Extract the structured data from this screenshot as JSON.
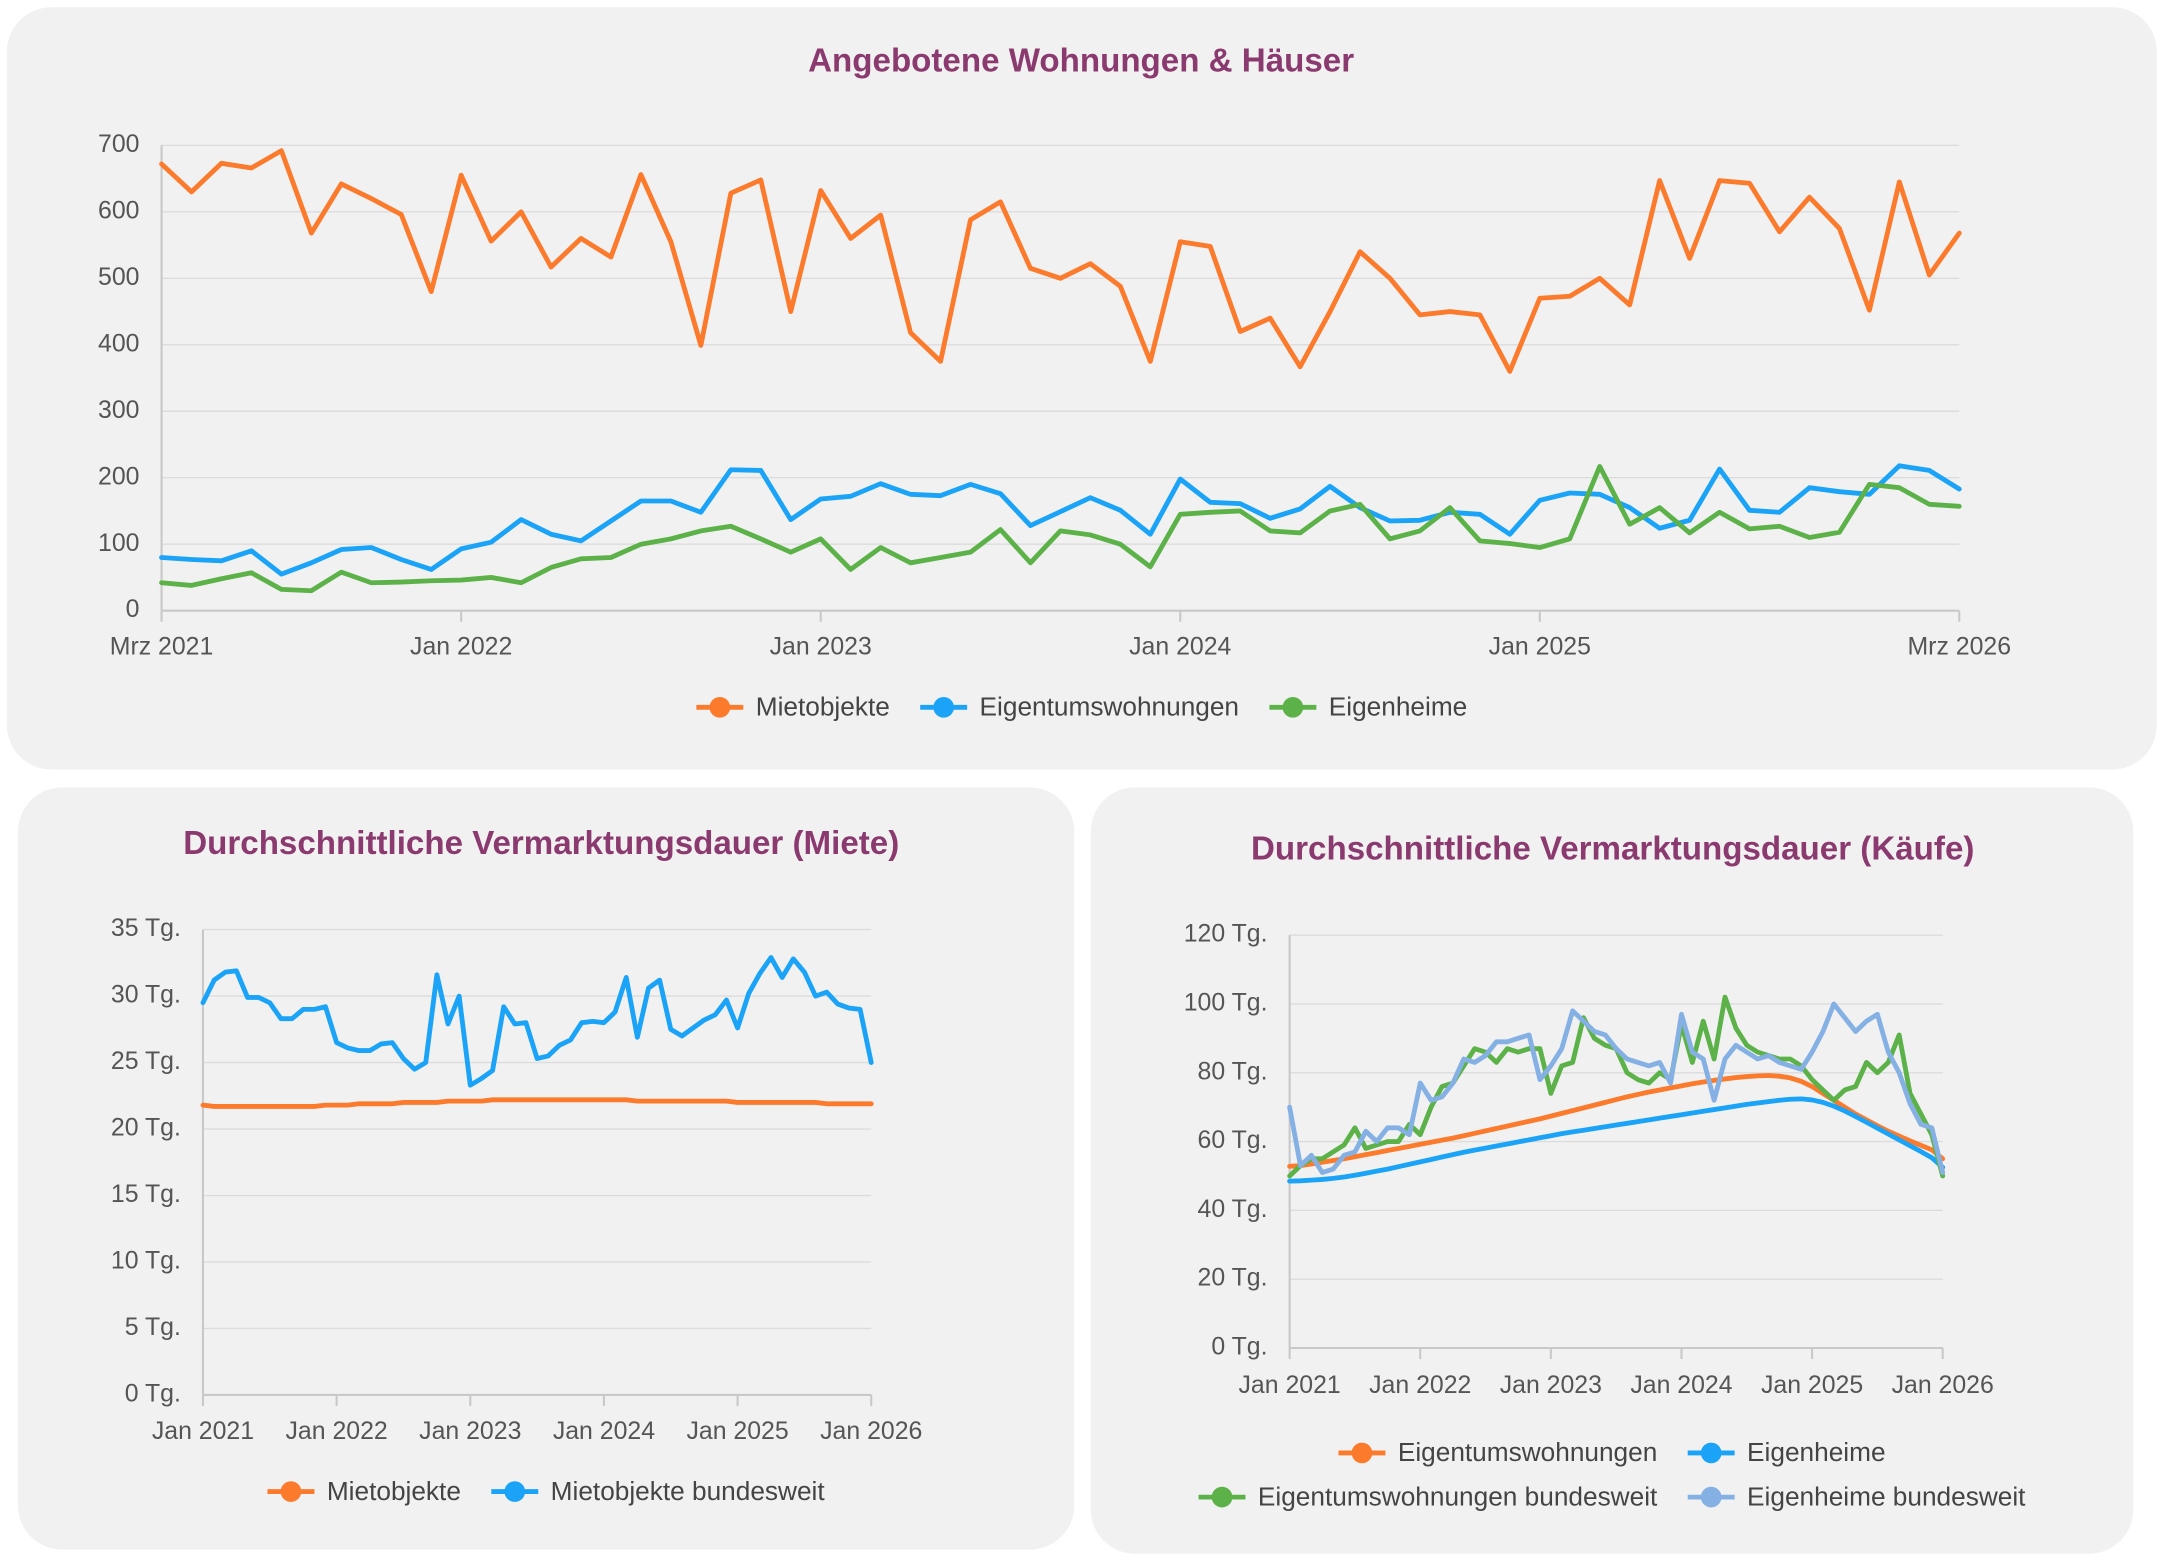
{
  "chart_data": [
    {
      "type": "line",
      "title": "Angebotene Wohnungen & Häuser",
      "categories": [
        "Mrz 2021",
        null,
        null,
        null,
        null,
        null,
        null,
        null,
        null,
        null,
        "Jan 2022",
        null,
        null,
        null,
        null,
        null,
        null,
        null,
        null,
        null,
        null,
        null,
        "Jan 2023",
        null,
        null,
        null,
        null,
        null,
        null,
        null,
        null,
        null,
        null,
        null,
        "Jan 2024",
        null,
        null,
        null,
        null,
        null,
        null,
        null,
        null,
        null,
        null,
        null,
        "Jan 2025",
        null,
        null,
        null,
        null,
        null,
        null,
        null,
        null,
        null,
        null,
        null,
        null,
        null,
        "Mrz 2026"
      ],
      "series": [
        {
          "name": "Mietobjekte",
          "color": "#fb7a2c",
          "values": [
            672,
            630,
            673,
            666,
            692,
            568,
            642,
            620,
            596,
            480,
            655,
            556,
            600,
            517,
            560,
            532,
            656,
            555,
            399,
            628,
            648,
            450,
            632,
            560,
            595,
            418,
            375,
            588,
            615,
            515,
            500,
            522,
            488,
            375,
            555,
            548,
            420,
            440,
            367,
            450,
            540,
            500,
            445,
            450,
            445,
            360,
            470,
            473,
            500,
            460,
            647,
            530,
            647,
            643,
            570,
            622,
            575,
            452,
            645,
            505,
            568
          ]
        },
        {
          "name": "Eigentumswohnungen",
          "color": "#1aa3f7",
          "values": [
            80,
            77,
            75,
            90,
            55,
            72,
            92,
            95,
            77,
            62,
            93,
            103,
            137,
            115,
            105,
            135,
            165,
            165,
            148,
            212,
            211,
            137,
            168,
            172,
            191,
            175,
            173,
            190,
            176,
            128,
            149,
            170,
            151,
            115,
            198,
            163,
            161,
            139,
            153,
            187,
            155,
            135,
            136,
            148,
            145,
            115,
            166,
            177,
            175,
            155,
            124,
            136,
            213,
            151,
            148,
            185,
            179,
            175,
            218,
            211,
            183
          ]
        },
        {
          "name": "Eigenheime",
          "color": "#5cb249",
          "values": [
            42,
            38,
            48,
            57,
            32,
            30,
            58,
            42,
            43,
            45,
            46,
            50,
            42,
            65,
            78,
            80,
            100,
            108,
            120,
            127,
            108,
            88,
            108,
            62,
            95,
            72,
            80,
            88,
            122,
            72,
            120,
            114,
            100,
            66,
            145,
            148,
            150,
            120,
            117,
            150,
            160,
            108,
            120,
            155,
            105,
            101,
            95,
            108,
            217,
            130,
            155,
            117,
            148,
            123,
            127,
            110,
            118,
            190,
            185,
            160,
            157
          ]
        }
      ],
      "ylim": [
        0,
        700
      ],
      "yticks": [
        0,
        100,
        200,
        300,
        400,
        500,
        600,
        700
      ],
      "grid": true,
      "legend": "bottom"
    },
    {
      "type": "line",
      "title": "Durchschnittliche Vermarktungsdauer (Miete)",
      "categories": [
        "Jan 2021",
        null,
        null,
        null,
        null,
        null,
        null,
        null,
        null,
        null,
        null,
        null,
        "Jan 2022",
        null,
        null,
        null,
        null,
        null,
        null,
        null,
        null,
        null,
        null,
        null,
        "Jan 2023",
        null,
        null,
        null,
        null,
        null,
        null,
        null,
        null,
        null,
        null,
        null,
        "Jan 2024",
        null,
        null,
        null,
        null,
        null,
        null,
        null,
        null,
        null,
        null,
        null,
        "Jan 2025",
        null,
        null,
        null,
        null,
        null,
        null,
        null,
        null,
        null,
        null,
        null,
        "Jan 2026"
      ],
      "series": [
        {
          "name": "Mietobjekte",
          "color": "#fb7a2c",
          "values": [
            21.8,
            21.7,
            21.7,
            21.7,
            21.7,
            21.7,
            21.7,
            21.7,
            21.7,
            21.7,
            21.7,
            21.8,
            21.8,
            21.8,
            21.9,
            21.9,
            21.9,
            21.9,
            22,
            22,
            22,
            22,
            22.1,
            22.1,
            22.1,
            22.1,
            22.2,
            22.2,
            22.2,
            22.2,
            22.2,
            22.2,
            22.2,
            22.2,
            22.2,
            22.2,
            22.2,
            22.2,
            22.2,
            22.1,
            22.1,
            22.1,
            22.1,
            22.1,
            22.1,
            22.1,
            22.1,
            22.1,
            22,
            22,
            22,
            22,
            22,
            22,
            22,
            22,
            21.9,
            21.9,
            21.9,
            21.9,
            21.9
          ]
        },
        {
          "name": "Mietobjekte bundesweit",
          "color": "#1aa3f7",
          "values": [
            29.5,
            31.2,
            31.8,
            31.9,
            29.9,
            29.9,
            29.5,
            28.3,
            28.3,
            29.0,
            29.0,
            29.2,
            26.5,
            26.1,
            25.9,
            25.9,
            26.4,
            26.5,
            25.3,
            24.5,
            25.0,
            31.6,
            27.9,
            30.0,
            23.3,
            23.8,
            24.4,
            29.2,
            27.9,
            28.0,
            25.3,
            25.5,
            26.3,
            26.7,
            28.0,
            28.1,
            28.0,
            28.8,
            31.4,
            26.9,
            30.6,
            31.2,
            27.5,
            27.0,
            27.6,
            28.2,
            28.6,
            29.7,
            27.6,
            30.2,
            31.7,
            32.9,
            31.4,
            32.8,
            31.8,
            30.0,
            30.3,
            29.4,
            29.1,
            29.0,
            25.0
          ]
        }
      ],
      "ylim": [
        0,
        35
      ],
      "yticks": [
        {
          "value": 0,
          "label": "0 Tg."
        },
        {
          "value": 5,
          "label": "5 Tg."
        },
        {
          "value": 10,
          "label": "10 Tg."
        },
        {
          "value": 15,
          "label": "15 Tg."
        },
        {
          "value": 20,
          "label": "20 Tg."
        },
        {
          "value": 25,
          "label": "25 Tg."
        },
        {
          "value": 30,
          "label": "30 Tg."
        },
        {
          "value": 35,
          "label": "35 Tg."
        }
      ],
      "grid": true,
      "legend": "bottom"
    },
    {
      "type": "line",
      "title": "Durchschnittliche Vermarktungsdauer (Käufe)",
      "categories": [
        "Jan 2021",
        null,
        null,
        null,
        null,
        null,
        null,
        null,
        null,
        null,
        null,
        null,
        "Jan 2022",
        null,
        null,
        null,
        null,
        null,
        null,
        null,
        null,
        null,
        null,
        null,
        "Jan 2023",
        null,
        null,
        null,
        null,
        null,
        null,
        null,
        null,
        null,
        null,
        null,
        "Jan 2024",
        null,
        null,
        null,
        null,
        null,
        null,
        null,
        null,
        null,
        null,
        null,
        "Jan 2025",
        null,
        null,
        null,
        null,
        null,
        null,
        null,
        null,
        null,
        null,
        null,
        "Jan 2026"
      ],
      "series": [
        {
          "name": "Eigentumswohnungen",
          "color": "#fb7a2c",
          "values": [
            52.8,
            53,
            53.5,
            54,
            54.5,
            55,
            55.6,
            56.2,
            56.8,
            57.4,
            58,
            58.6,
            59.2,
            59.8,
            60.4,
            61,
            61.7,
            62.4,
            63.1,
            63.8,
            64.5,
            65.2,
            65.9,
            66.6,
            67.4,
            68.2,
            69,
            69.8,
            70.6,
            71.4,
            72.2,
            73,
            73.7,
            74.4,
            75,
            75.6,
            76.2,
            76.8,
            77.3,
            77.8,
            78.2,
            78.6,
            78.9,
            79.1,
            79.2,
            79,
            78.5,
            77.5,
            76,
            74,
            72,
            70,
            68,
            66.3,
            64.6,
            63,
            61.6,
            60.2,
            58.9,
            57.6,
            55
          ]
        },
        {
          "name": "Eigenheime",
          "color": "#1aa3f7",
          "values": [
            48.5,
            48.6,
            48.8,
            49,
            49.3,
            49.7,
            50.2,
            50.8,
            51.4,
            52,
            52.7,
            53.4,
            54.1,
            54.8,
            55.5,
            56.2,
            56.9,
            57.5,
            58.1,
            58.7,
            59.3,
            59.9,
            60.5,
            61.1,
            61.7,
            62.3,
            62.8,
            63.3,
            63.8,
            64.3,
            64.8,
            65.3,
            65.8,
            66.3,
            66.8,
            67.3,
            67.8,
            68.3,
            68.8,
            69.3,
            69.8,
            70.3,
            70.8,
            71.2,
            71.6,
            72,
            72.3,
            72.4,
            72.1,
            71.4,
            70.3,
            68.9,
            67.3,
            65.6,
            63.9,
            62.2,
            60.5,
            58.8,
            57.1,
            55.3,
            52.5
          ]
        },
        {
          "name": "Eigentumswohnungen bundesweit",
          "color": "#5cb249",
          "values": [
            50,
            53,
            55,
            55,
            57,
            59,
            64,
            58,
            59,
            60,
            60,
            65,
            62,
            70,
            76,
            77,
            82,
            87,
            86,
            83,
            87,
            86,
            87,
            87,
            74,
            82,
            83,
            96,
            90,
            88,
            87,
            80,
            78,
            77,
            80,
            78,
            94,
            83,
            95,
            84,
            102,
            93,
            88,
            86,
            85,
            84,
            84,
            82,
            78,
            75,
            72,
            75,
            76,
            83,
            80,
            83,
            91,
            74,
            68,
            62,
            50
          ]
        },
        {
          "name": "Eigenheime bundesweit",
          "color": "#85b0e3",
          "values": [
            70,
            53,
            56,
            51,
            52,
            56,
            57,
            63,
            60,
            64,
            64,
            62,
            77,
            72,
            73,
            77,
            84,
            83,
            85,
            89,
            89,
            90,
            91,
            78,
            82,
            87,
            98,
            95,
            92,
            91,
            87,
            84,
            83,
            82,
            83,
            77,
            97,
            86,
            84,
            72,
            84,
            88,
            86,
            84,
            85,
            83,
            82,
            81,
            86,
            92,
            100,
            96,
            92,
            95,
            97,
            86,
            80,
            71,
            65,
            64,
            51
          ]
        }
      ],
      "ylim": [
        0,
        120
      ],
      "yticks": [
        {
          "value": 0,
          "label": "0 Tg."
        },
        {
          "value": 20,
          "label": "20 Tg."
        },
        {
          "value": 40,
          "label": "40 Tg."
        },
        {
          "value": 60,
          "label": "60 Tg."
        },
        {
          "value": 80,
          "label": "80 Tg."
        },
        {
          "value": 100,
          "label": "100 Tg."
        },
        {
          "value": 120,
          "label": "120 Tg."
        }
      ],
      "grid": true,
      "legend": "bottom"
    }
  ]
}
